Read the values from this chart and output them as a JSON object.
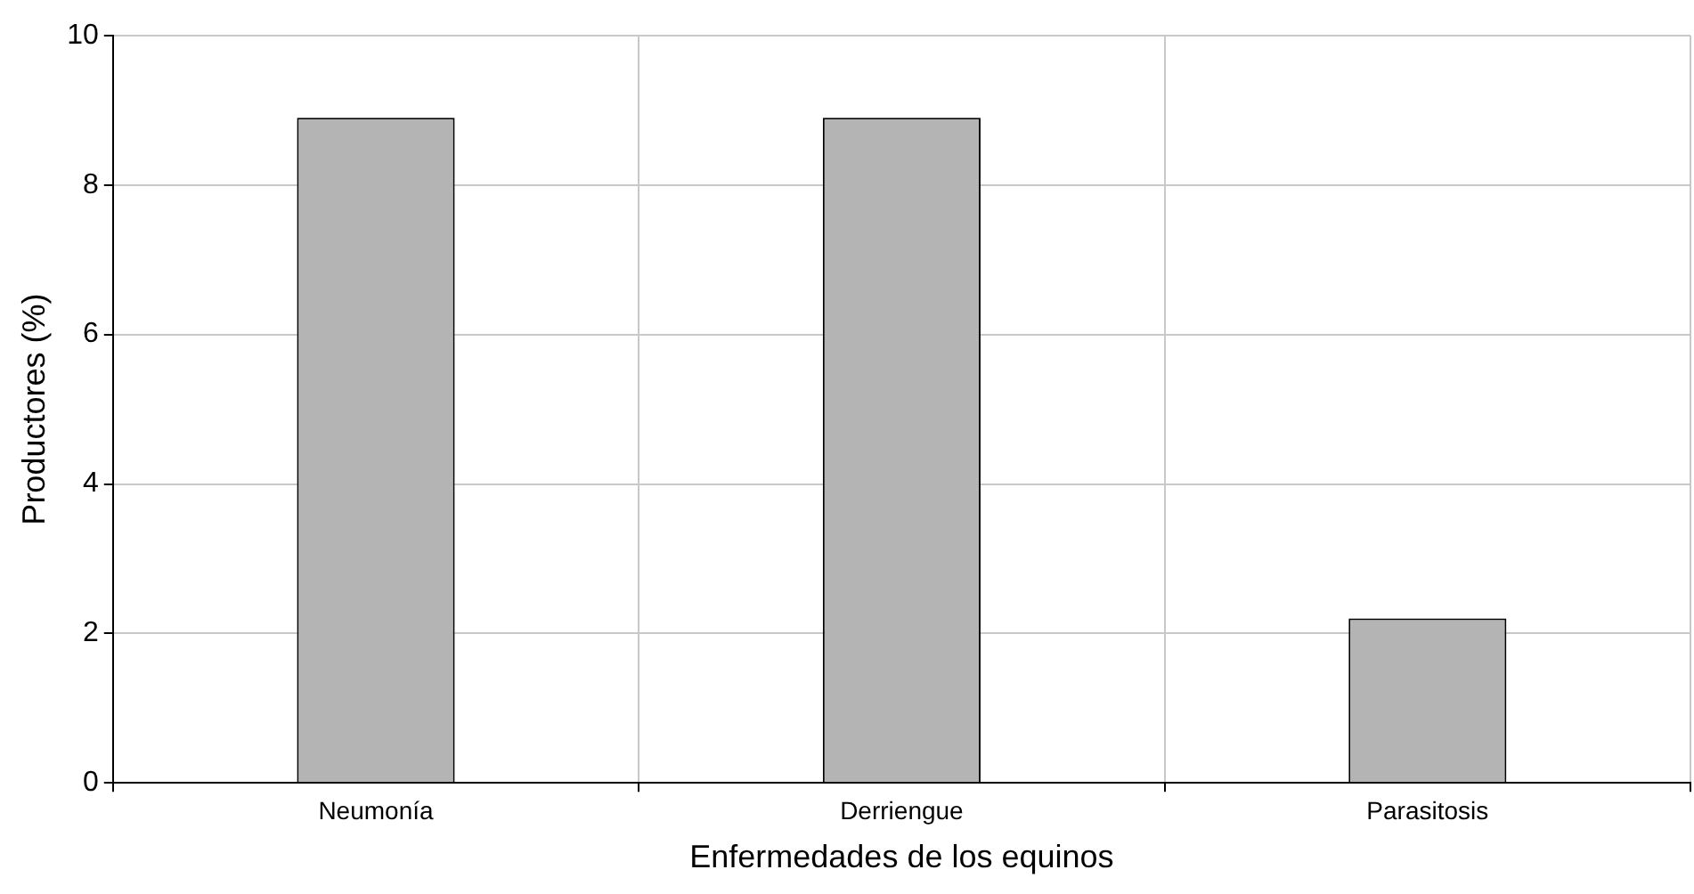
{
  "chart_data": {
    "type": "bar",
    "xlabel": "Enfermedades de los equinos",
    "ylabel": "Productores (%)",
    "categories": [
      "Neumonía",
      "Derriengue",
      "Parasitosis"
    ],
    "values": [
      8.9,
      8.9,
      2.2
    ],
    "color": "#b4b4b4",
    "ylim": [
      0,
      10
    ],
    "yticks": [
      0,
      2,
      4,
      6,
      8,
      10
    ],
    "grid": true
  }
}
